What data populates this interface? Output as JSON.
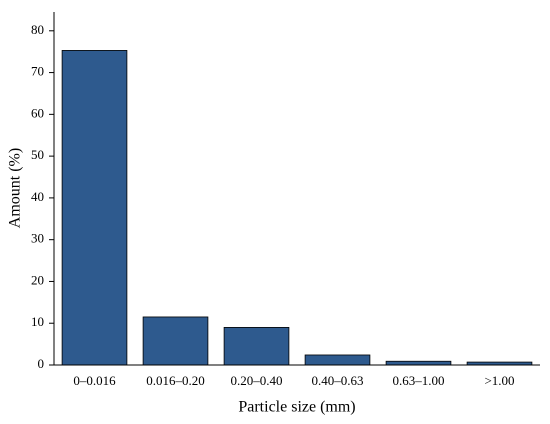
{
  "chart_data": {
    "type": "bar",
    "x_label": "Particle size (mm)",
    "y_label": "Amount (%)",
    "categories": [
      "0–0.016",
      "0.016–0.20",
      "0.20–0.40",
      "0.40–0.63",
      "0.63–1.00",
      ">1.00"
    ],
    "values": [
      75.3,
      11.5,
      9.0,
      2.4,
      0.9,
      0.7
    ],
    "color": "#2e5a8e",
    "ylim": [
      0,
      84.5
    ],
    "yticks": [
      0,
      10,
      20,
      30,
      40,
      50,
      60,
      70,
      80
    ],
    "grid": false
  }
}
